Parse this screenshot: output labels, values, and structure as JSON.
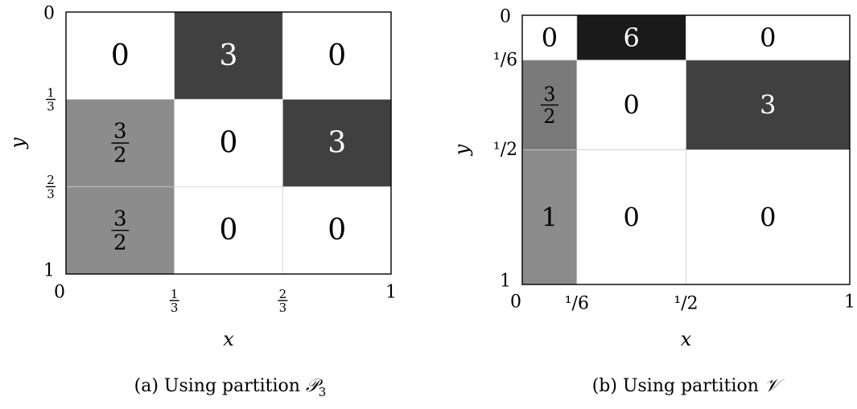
{
  "chart_data": [
    {
      "type": "heatmap",
      "caption_prefix": "(a) Using partition ",
      "caption_symbol": "𝒫",
      "caption_sub": "3",
      "xlabel": "x",
      "ylabel": "y",
      "xlim": [
        0,
        1
      ],
      "ylim": [
        0,
        1
      ],
      "y_axis_direction": "down",
      "x_ticks": [
        {
          "value": 0,
          "label": "0"
        },
        {
          "value": 0.3333,
          "num": "1",
          "den": "3"
        },
        {
          "value": 0.6667,
          "num": "2",
          "den": "3"
        },
        {
          "value": 1,
          "label": "1"
        }
      ],
      "y_ticks": [
        {
          "value": 0,
          "label": "0"
        },
        {
          "value": 0.3333,
          "num": "1",
          "den": "3"
        },
        {
          "value": 0.6667,
          "num": "2",
          "den": "3"
        },
        {
          "value": 1,
          "label": "1"
        }
      ],
      "cells": [
        {
          "x": [
            0,
            0.3333
          ],
          "y": [
            0,
            0.3333
          ],
          "value": "0",
          "shade": "#ffffff",
          "text_color": "#000000"
        },
        {
          "x": [
            0.3333,
            0.6667
          ],
          "y": [
            0,
            0.3333
          ],
          "value": "3",
          "shade": "#404040",
          "text_color": "#ffffff"
        },
        {
          "x": [
            0.6667,
            1
          ],
          "y": [
            0,
            0.3333
          ],
          "value": "0",
          "shade": "#ffffff",
          "text_color": "#000000"
        },
        {
          "x": [
            0,
            0.3333
          ],
          "y": [
            0.3333,
            0.6667
          ],
          "num": "3",
          "den": "2",
          "shade": "#8c8c8c",
          "text_color": "#000000"
        },
        {
          "x": [
            0.3333,
            0.6667
          ],
          "y": [
            0.3333,
            0.6667
          ],
          "value": "0",
          "shade": "#ffffff",
          "text_color": "#000000"
        },
        {
          "x": [
            0.6667,
            1
          ],
          "y": [
            0.3333,
            0.6667
          ],
          "value": "3",
          "shade": "#404040",
          "text_color": "#ffffff"
        },
        {
          "x": [
            0,
            0.3333
          ],
          "y": [
            0.6667,
            1
          ],
          "num": "3",
          "den": "2",
          "shade": "#8c8c8c",
          "text_color": "#000000"
        },
        {
          "x": [
            0.3333,
            0.6667
          ],
          "y": [
            0.6667,
            1
          ],
          "value": "0",
          "shade": "#ffffff",
          "text_color": "#000000"
        },
        {
          "x": [
            0.6667,
            1
          ],
          "y": [
            0.6667,
            1
          ],
          "value": "0",
          "shade": "#ffffff",
          "text_color": "#000000"
        }
      ]
    },
    {
      "type": "heatmap",
      "caption_prefix": "(b) Using partition ",
      "caption_symbol": "𝒱",
      "caption_sub": "",
      "xlabel": "x",
      "ylabel": "y",
      "xlim": [
        0,
        1
      ],
      "ylim": [
        0,
        1
      ],
      "y_axis_direction": "down",
      "x_ticks": [
        {
          "value": 0,
          "label": "0"
        },
        {
          "value": 0.1667,
          "label": "¹/6"
        },
        {
          "value": 0.5,
          "label": "¹/2"
        },
        {
          "value": 1,
          "label": "1"
        }
      ],
      "y_ticks": [
        {
          "value": 0,
          "label": "0"
        },
        {
          "value": 0.1667,
          "label": "¹/6"
        },
        {
          "value": 0.5,
          "label": "¹/2"
        },
        {
          "value": 1,
          "label": "1"
        }
      ],
      "cells": [
        {
          "x": [
            0,
            0.1667
          ],
          "y": [
            0,
            0.1667
          ],
          "value": "0",
          "shade": "#ffffff",
          "text_color": "#000000"
        },
        {
          "x": [
            0.1667,
            0.5
          ],
          "y": [
            0,
            0.1667
          ],
          "value": "6",
          "shade": "#1a1a1a",
          "text_color": "#ffffff"
        },
        {
          "x": [
            0.5,
            1
          ],
          "y": [
            0,
            0.1667
          ],
          "value": "0",
          "shade": "#ffffff",
          "text_color": "#000000"
        },
        {
          "x": [
            0,
            0.1667
          ],
          "y": [
            0.1667,
            0.5
          ],
          "num": "3",
          "den": "2",
          "shade": "#7a7a7a",
          "text_color": "#000000"
        },
        {
          "x": [
            0.1667,
            0.5
          ],
          "y": [
            0.1667,
            0.5
          ],
          "value": "0",
          "shade": "#ffffff",
          "text_color": "#000000"
        },
        {
          "x": [
            0.5,
            1
          ],
          "y": [
            0.1667,
            0.5
          ],
          "value": "3",
          "shade": "#404040",
          "text_color": "#ffffff"
        },
        {
          "x": [
            0,
            0.1667
          ],
          "y": [
            0.5,
            1
          ],
          "value": "1",
          "shade": "#8c8c8c",
          "text_color": "#000000"
        },
        {
          "x": [
            0.1667,
            0.5
          ],
          "y": [
            0.5,
            1
          ],
          "value": "0",
          "shade": "#ffffff",
          "text_color": "#000000"
        },
        {
          "x": [
            0.5,
            1
          ],
          "y": [
            0.5,
            1
          ],
          "value": "0",
          "shade": "#ffffff",
          "text_color": "#000000"
        }
      ]
    }
  ]
}
